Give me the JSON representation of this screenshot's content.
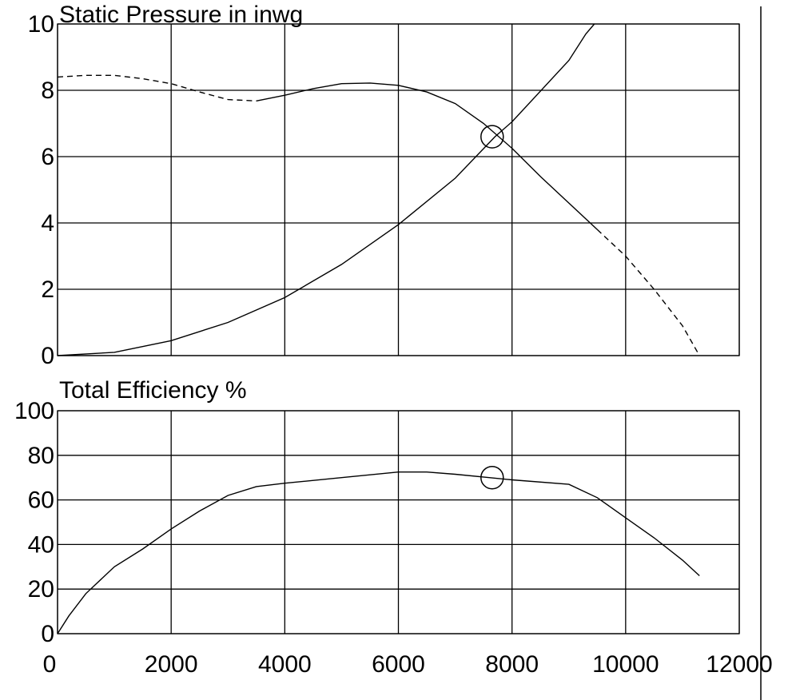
{
  "chart_data": [
    {
      "type": "line",
      "title": "Static Pressure in inwg",
      "xlim": [
        0,
        12000
      ],
      "ylim": [
        0,
        10
      ],
      "x_ticks": [
        "0",
        "2000",
        "4000",
        "6000",
        "8000",
        "10000",
        "12000"
      ],
      "y_ticks": [
        "0",
        "2",
        "4",
        "6",
        "8",
        "10"
      ],
      "grid": true,
      "series": [
        {
          "style": "fan-curve",
          "points": [
            [
              0,
              8.4
            ],
            [
              500,
              8.45
            ],
            [
              1000,
              8.45
            ],
            [
              1500,
              8.35
            ],
            [
              2000,
              8.2
            ],
            [
              2500,
              7.95
            ],
            [
              3000,
              7.72
            ],
            [
              3500,
              7.68
            ],
            [
              4000,
              7.85
            ],
            [
              4500,
              8.05
            ],
            [
              5000,
              8.2
            ],
            [
              5500,
              8.22
            ],
            [
              6000,
              8.15
            ],
            [
              6500,
              7.95
            ],
            [
              7000,
              7.6
            ],
            [
              7500,
              7.0
            ],
            [
              8000,
              6.25
            ],
            [
              8500,
              5.4
            ],
            [
              9000,
              4.6
            ],
            [
              9500,
              3.8
            ],
            [
              10000,
              3.0
            ],
            [
              10500,
              2.0
            ],
            [
              11000,
              0.9
            ],
            [
              11300,
              0.0
            ]
          ],
          "solid_range": [
            3500,
            9500
          ]
        },
        {
          "style": "system-curve",
          "points": [
            [
              0,
              0.0
            ],
            [
              1000,
              0.1
            ],
            [
              2000,
              0.45
            ],
            [
              3000,
              1.0
            ],
            [
              4000,
              1.75
            ],
            [
              5000,
              2.75
            ],
            [
              6000,
              3.95
            ],
            [
              7000,
              5.35
            ],
            [
              7700,
              6.6
            ],
            [
              8000,
              7.05
            ],
            [
              9000,
              8.9
            ],
            [
              9300,
              9.7
            ],
            [
              9450,
              10.0
            ]
          ]
        }
      ],
      "operating_point": [
        7650,
        6.6
      ]
    },
    {
      "type": "line",
      "title": "Total Efficiency %",
      "xlim": [
        0,
        12000
      ],
      "ylim": [
        0,
        100
      ],
      "x_ticks": [
        "0",
        "2000",
        "4000",
        "6000",
        "8000",
        "10000",
        "12000"
      ],
      "y_ticks": [
        "0",
        "20",
        "40",
        "60",
        "80",
        "100"
      ],
      "grid": true,
      "series": [
        {
          "style": "efficiency-curve",
          "points": [
            [
              0,
              0
            ],
            [
              200,
              8
            ],
            [
              500,
              18
            ],
            [
              1000,
              30
            ],
            [
              1500,
              38
            ],
            [
              2000,
              47
            ],
            [
              2500,
              55
            ],
            [
              3000,
              62
            ],
            [
              3500,
              66
            ],
            [
              4000,
              67.5
            ],
            [
              5000,
              70
            ],
            [
              6000,
              72.5
            ],
            [
              6500,
              72.5
            ],
            [
              7000,
              71.5
            ],
            [
              7600,
              70
            ],
            [
              8000,
              69
            ],
            [
              9000,
              67
            ],
            [
              9500,
              61
            ],
            [
              10000,
              52
            ],
            [
              10500,
              43
            ],
            [
              11000,
              33
            ],
            [
              11300,
              26
            ]
          ]
        }
      ],
      "operating_point": [
        7650,
        70
      ]
    }
  ]
}
